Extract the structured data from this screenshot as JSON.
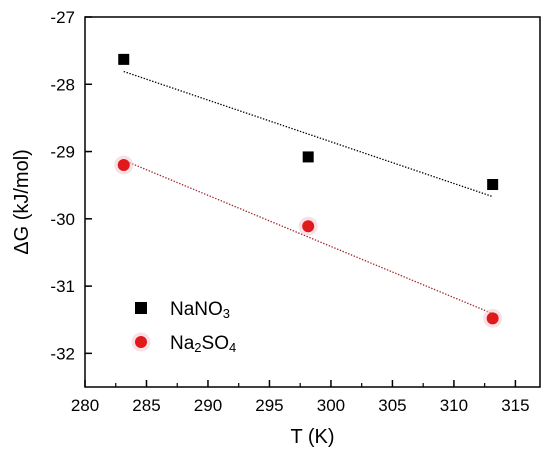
{
  "chart_data": {
    "type": "scatter",
    "xlabel": "T (K)",
    "ylabel": "ΔG (kJ/mol)",
    "xlim": [
      280,
      317
    ],
    "ylim": [
      -32.5,
      -27
    ],
    "x_ticks": [
      280,
      285,
      290,
      295,
      300,
      305,
      310,
      315
    ],
    "y_ticks": [
      -32,
      -31,
      -30,
      -29,
      -28,
      -27
    ],
    "legend_position": "bottom-left",
    "series": [
      {
        "name": "NaNO3",
        "name_parts": [
          [
            "Na",
            ""
          ],
          [
            "NO",
            ""
          ],
          [
            "3",
            "sub"
          ]
        ],
        "marker": "square",
        "color": "#000000",
        "fit_color": "#000000",
        "x": [
          283.15,
          298.15,
          313.15
        ],
        "y": [
          -27.63,
          -29.08,
          -29.49
        ],
        "fit_y": [
          -27.81,
          -28.74,
          -29.67
        ]
      },
      {
        "name": "Na2SO4",
        "name_parts": [
          [
            "Na",
            ""
          ],
          [
            "2",
            "sub"
          ],
          [
            "SO",
            ""
          ],
          [
            "4",
            "sub"
          ]
        ],
        "marker": "circle",
        "color": "#e0191b",
        "fit_color": "#a0262a",
        "x": [
          283.15,
          298.15,
          313.15
        ],
        "y": [
          -29.2,
          -30.11,
          -31.48
        ],
        "fit_y": [
          -29.13,
          -30.27,
          -31.41
        ]
      }
    ]
  }
}
